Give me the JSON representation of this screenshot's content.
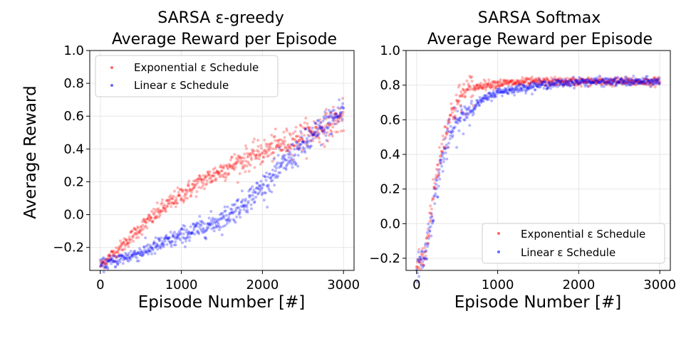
{
  "chart_data": [
    {
      "type": "scatter",
      "title_line1": "SARSA ε-greedy",
      "title_line2": "Average Reward per Episode",
      "xlabel": "Episode Number [#]",
      "ylabel": "Average Reward",
      "xlim": [
        -130,
        3130
      ],
      "ylim": [
        -0.34,
        1.0
      ],
      "xticks": [
        0,
        1000,
        2000,
        3000
      ],
      "xtick_labels": [
        "0",
        "1000",
        "2000",
        "3000"
      ],
      "yticks": [
        -0.2,
        0.0,
        0.2,
        0.4,
        0.6,
        0.8,
        1.0
      ],
      "ytick_labels": [
        "−0.2",
        "0.0",
        "0.2",
        "0.4",
        "0.6",
        "0.8",
        "1.0"
      ],
      "grid": true,
      "legend_position": "top-left",
      "series": [
        {
          "name": "Exponential ε Schedule",
          "color": "#ff0000",
          "x": [
            0,
            250,
            500,
            750,
            1000,
            1250,
            1500,
            1750,
            2000,
            2250,
            2500,
            2750,
            3000
          ],
          "y": [
            -0.31,
            -0.2,
            -0.08,
            0.03,
            0.12,
            0.2,
            0.27,
            0.33,
            0.38,
            0.43,
            0.48,
            0.53,
            0.6
          ]
        },
        {
          "name": "Linear ε Schedule",
          "color": "#0000ff",
          "x": [
            0,
            250,
            500,
            750,
            1000,
            1250,
            1500,
            1750,
            2000,
            2250,
            2500,
            2750,
            3000
          ],
          "y": [
            -0.31,
            -0.27,
            -0.23,
            -0.18,
            -0.13,
            -0.08,
            -0.03,
            0.06,
            0.17,
            0.3,
            0.42,
            0.53,
            0.64
          ]
        }
      ]
    },
    {
      "type": "scatter",
      "title_line1": "SARSA Softmax",
      "title_line2": "Average Reward per Episode",
      "xlabel": "Episode Number [#]",
      "ylabel": "",
      "xlim": [
        -130,
        3130
      ],
      "ylim": [
        -0.27,
        1.0
      ],
      "xticks": [
        0,
        1000,
        2000,
        3000
      ],
      "xtick_labels": [
        "0",
        "1000",
        "2000",
        "3000"
      ],
      "yticks": [
        -0.2,
        0.0,
        0.2,
        0.4,
        0.6,
        0.8,
        1.0
      ],
      "ytick_labels": [
        "−0.2",
        "0.0",
        "0.2",
        "0.4",
        "0.6",
        "0.8",
        "1.0"
      ],
      "grid": true,
      "legend_position": "bottom-right",
      "series": [
        {
          "name": "Exponential ε Schedule",
          "color": "#ff0000",
          "x": [
            0,
            100,
            200,
            300,
            400,
            500,
            600,
            800,
            1000,
            1500,
            2000,
            2500,
            3000
          ],
          "y": [
            -0.24,
            -0.19,
            0.15,
            0.42,
            0.6,
            0.7,
            0.76,
            0.8,
            0.81,
            0.82,
            0.82,
            0.82,
            0.82
          ]
        },
        {
          "name": "Linear ε Schedule",
          "color": "#0000ff",
          "x": [
            0,
            100,
            200,
            300,
            400,
            500,
            600,
            800,
            1000,
            1500,
            2000,
            2500,
            3000
          ],
          "y": [
            -0.24,
            -0.19,
            0.08,
            0.34,
            0.5,
            0.58,
            0.64,
            0.71,
            0.76,
            0.8,
            0.82,
            0.82,
            0.82
          ]
        }
      ]
    }
  ]
}
